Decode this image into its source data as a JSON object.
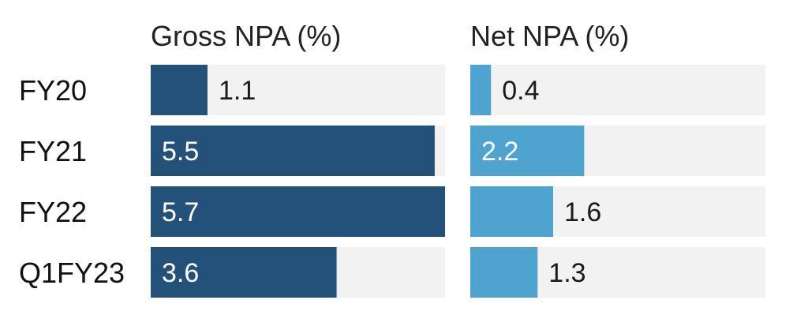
{
  "chart_data": {
    "type": "bar",
    "orientation": "horizontal",
    "categories": [
      "FY20",
      "FY21",
      "FY22",
      "Q1FY23"
    ],
    "series": [
      {
        "name": "Gross NPA (%)",
        "values": [
          1.1,
          5.5,
          5.7,
          3.6
        ],
        "color": "#23517a",
        "xlim": [
          0,
          5.7
        ]
      },
      {
        "name": "Net NPA (%)",
        "values": [
          0.4,
          2.2,
          1.6,
          1.3
        ],
        "color": "#4ea3cf",
        "xlim": [
          0,
          5.7
        ]
      }
    ],
    "background_color": "#f2f2f2",
    "grid": false,
    "legend": "none"
  }
}
